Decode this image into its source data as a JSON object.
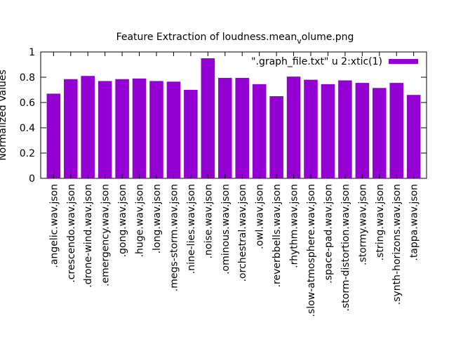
{
  "chart_data": {
    "type": "bar",
    "title_main": "Feature Extraction of loudness.mean",
    "title_sub": "v",
    "title_tail": "olume.png",
    "ylabel": "Normalized Values",
    "legend": "\".graph_file.txt\" u 2:xtic(1)",
    "ylim": [
      0,
      1
    ],
    "yticks": [
      "0",
      "0.2",
      "0.4",
      "0.6",
      "0.8",
      "1"
    ],
    "bar_color": "#9400d3",
    "categories": [
      ".angelic.wav.json",
      ".crescendo.wav.json",
      ".drone-wind.wav.json",
      ".emergency.wav.json",
      ".gong.wav.json",
      ".huge.wav.json",
      ".long.wav.json",
      ".megs-storm.wav.json",
      ".nine-lies.wav.json",
      ".noise.wav.json",
      ".ominous.wav.json",
      ".orchestral.wav.json",
      ".owl.wav.json",
      ".reverbbells.wav.json",
      ".rhythm.wav.json",
      ".slow-atmosphere.wav.json",
      ".space-pad.wav.json",
      ".storm-distortion.wav.json",
      ".stormy.wav.json",
      ".string.wav.json",
      ".synth-horizons.wav.json",
      ".tappa.wav.json"
    ],
    "values": [
      0.67,
      0.785,
      0.81,
      0.77,
      0.785,
      0.79,
      0.77,
      0.765,
      0.7,
      0.95,
      0.795,
      0.795,
      0.745,
      0.65,
      0.805,
      0.78,
      0.745,
      0.775,
      0.755,
      0.715,
      0.755,
      0.66
    ]
  }
}
